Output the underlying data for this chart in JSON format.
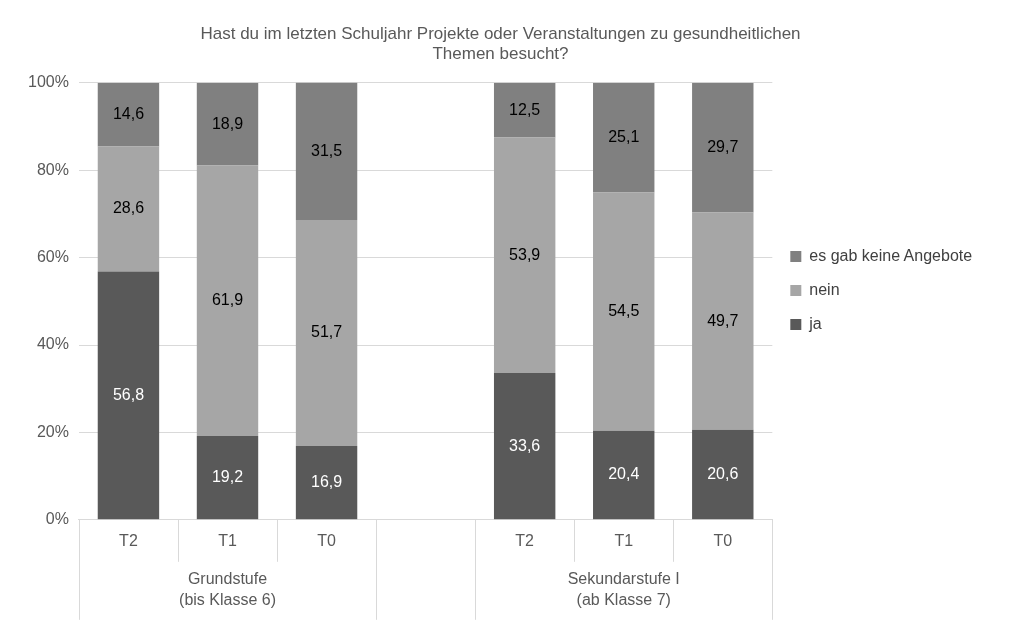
{
  "chart_data": {
    "type": "bar",
    "stacked": true,
    "title": "Hast du im letzten Schuljahr Projekte oder Veranstaltungen zu gesundheitlichen Themen besucht?",
    "categories": [
      "T2",
      "T1",
      "T0",
      null,
      "T2",
      "T1",
      "T0"
    ],
    "series": [
      {
        "name": "ja",
        "color": "#595959",
        "values": [
          56.8,
          19.2,
          16.9,
          null,
          33.6,
          20.4,
          20.6
        ],
        "value_labels": [
          "56,8",
          "19,2",
          "16,9",
          null,
          "33,6",
          "20,4",
          "20,6"
        ]
      },
      {
        "name": "nein",
        "color": "#a6a6a6",
        "values": [
          28.6,
          61.9,
          51.7,
          null,
          53.9,
          54.5,
          49.7
        ],
        "value_labels": [
          "28,6",
          "61,9",
          "51,7",
          null,
          "53,9",
          "54,5",
          "49,7"
        ]
      },
      {
        "name": "es gab keine Angebote",
        "color": "#808080",
        "values": [
          14.6,
          18.9,
          31.5,
          null,
          12.5,
          25.1,
          29.7
        ],
        "value_labels": [
          "14,6",
          "18,9",
          "31,5",
          null,
          "12,5",
          "25,1",
          "29,7"
        ]
      }
    ],
    "ylim": [
      0,
      100
    ],
    "yticks": [
      {
        "value": 0,
        "label": "0%"
      },
      {
        "value": 20,
        "label": "20%"
      },
      {
        "value": 40,
        "label": "40%"
      },
      {
        "value": 60,
        "label": "60%"
      },
      {
        "value": 80,
        "label": "80%"
      },
      {
        "value": 100,
        "label": "100%"
      }
    ],
    "grid": "y",
    "legend": "right",
    "annotations": [
      "Grundstufe\n(bis Klasse 6)",
      "Sekundarstufe I\n(ab Klasse 7)"
    ]
  }
}
